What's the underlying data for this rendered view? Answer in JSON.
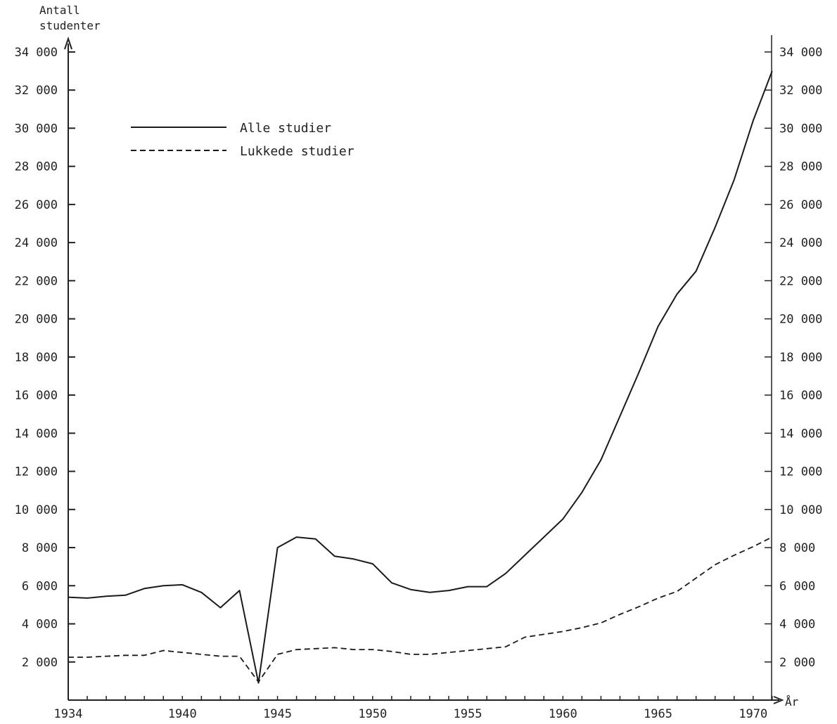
{
  "chart_data": {
    "type": "line",
    "ylabel_lines": [
      "Antall",
      "studenter"
    ],
    "xlabel": "År",
    "xlim": [
      1934,
      1971.5
    ],
    "ylim": [
      0,
      35000
    ],
    "x_tick_labels": [
      {
        "x": 1934,
        "label": "1934"
      },
      {
        "x": 1940,
        "label": "1940"
      },
      {
        "x": 1945,
        "label": "1945"
      },
      {
        "x": 1950,
        "label": "1950"
      },
      {
        "x": 1955,
        "label": "1955"
      },
      {
        "x": 1960,
        "label": "1960"
      },
      {
        "x": 1965,
        "label": "1965"
      },
      {
        "x": 1970,
        "label": "1970"
      }
    ],
    "x_minor_ticks": [
      1934,
      1935,
      1936,
      1937,
      1938,
      1939,
      1940,
      1941,
      1942,
      1943,
      1944,
      1945,
      1946,
      1947,
      1948,
      1949,
      1950,
      1951,
      1952,
      1953,
      1954,
      1955,
      1956,
      1957,
      1958,
      1959,
      1960,
      1961,
      1962,
      1963,
      1964,
      1965,
      1966,
      1967,
      1968,
      1969,
      1970,
      1971
    ],
    "y_ticks": [
      {
        "y": 2000,
        "label": "2 000"
      },
      {
        "y": 4000,
        "label": "4 000"
      },
      {
        "y": 6000,
        "label": "6 000"
      },
      {
        "y": 8000,
        "label": "8 000"
      },
      {
        "y": 10000,
        "label": "10 000"
      },
      {
        "y": 12000,
        "label": "12 000"
      },
      {
        "y": 14000,
        "label": "14 000"
      },
      {
        "y": 16000,
        "label": "16 000"
      },
      {
        "y": 18000,
        "label": "18 000"
      },
      {
        "y": 20000,
        "label": "20 000"
      },
      {
        "y": 22000,
        "label": "22 000"
      },
      {
        "y": 24000,
        "label": "24 000"
      },
      {
        "y": 26000,
        "label": "26 000"
      },
      {
        "y": 28000,
        "label": "28 000"
      },
      {
        "y": 30000,
        "label": "30 000"
      },
      {
        "y": 32000,
        "label": "32 000"
      },
      {
        "y": 34000,
        "label": "34 000"
      }
    ],
    "legend_position": "top-left",
    "series": [
      {
        "name": "Alle studier",
        "style": "solid",
        "points": [
          [
            1934,
            5400
          ],
          [
            1935,
            5350
          ],
          [
            1936,
            5450
          ],
          [
            1937,
            5500
          ],
          [
            1938,
            5850
          ],
          [
            1939,
            6000
          ],
          [
            1940,
            6050
          ],
          [
            1941,
            5650
          ],
          [
            1942,
            4850
          ],
          [
            1943,
            5750
          ],
          [
            1944,
            900
          ],
          [
            1945,
            8000
          ],
          [
            1946,
            8550
          ],
          [
            1947,
            8450
          ],
          [
            1948,
            7550
          ],
          [
            1949,
            7400
          ],
          [
            1950,
            7150
          ],
          [
            1951,
            6150
          ],
          [
            1952,
            5800
          ],
          [
            1953,
            5650
          ],
          [
            1954,
            5750
          ],
          [
            1955,
            5950
          ],
          [
            1956,
            5950
          ],
          [
            1957,
            6650
          ],
          [
            1958,
            7600
          ],
          [
            1959,
            8550
          ],
          [
            1960,
            9500
          ],
          [
            1961,
            10900
          ],
          [
            1962,
            12600
          ],
          [
            1963,
            14900
          ],
          [
            1964,
            17200
          ],
          [
            1965,
            19600
          ],
          [
            1966,
            21300
          ],
          [
            1967,
            22500
          ],
          [
            1968,
            24800
          ],
          [
            1969,
            27300
          ],
          [
            1970,
            30400
          ],
          [
            1971,
            33000
          ]
        ]
      },
      {
        "name": "Lukkede studier",
        "style": "dashed",
        "points": [
          [
            1934,
            2250
          ],
          [
            1935,
            2250
          ],
          [
            1936,
            2300
          ],
          [
            1937,
            2350
          ],
          [
            1938,
            2350
          ],
          [
            1939,
            2600
          ],
          [
            1940,
            2500
          ],
          [
            1941,
            2400
          ],
          [
            1942,
            2300
          ],
          [
            1943,
            2300
          ],
          [
            1944,
            950
          ],
          [
            1945,
            2400
          ],
          [
            1946,
            2650
          ],
          [
            1947,
            2700
          ],
          [
            1948,
            2750
          ],
          [
            1949,
            2650
          ],
          [
            1950,
            2650
          ],
          [
            1951,
            2550
          ],
          [
            1952,
            2400
          ],
          [
            1953,
            2400
          ],
          [
            1954,
            2500
          ],
          [
            1955,
            2600
          ],
          [
            1956,
            2700
          ],
          [
            1957,
            2800
          ],
          [
            1958,
            3300
          ],
          [
            1959,
            3450
          ],
          [
            1960,
            3600
          ],
          [
            1961,
            3800
          ],
          [
            1962,
            4050
          ],
          [
            1963,
            4500
          ],
          [
            1964,
            4900
          ],
          [
            1965,
            5350
          ],
          [
            1966,
            5700
          ],
          [
            1967,
            6400
          ],
          [
            1968,
            7100
          ],
          [
            1969,
            7600
          ],
          [
            1970,
            8050
          ],
          [
            1971,
            8550
          ]
        ]
      }
    ],
    "colors": {
      "axis": "#222222",
      "line": "#1a1a1a"
    }
  }
}
